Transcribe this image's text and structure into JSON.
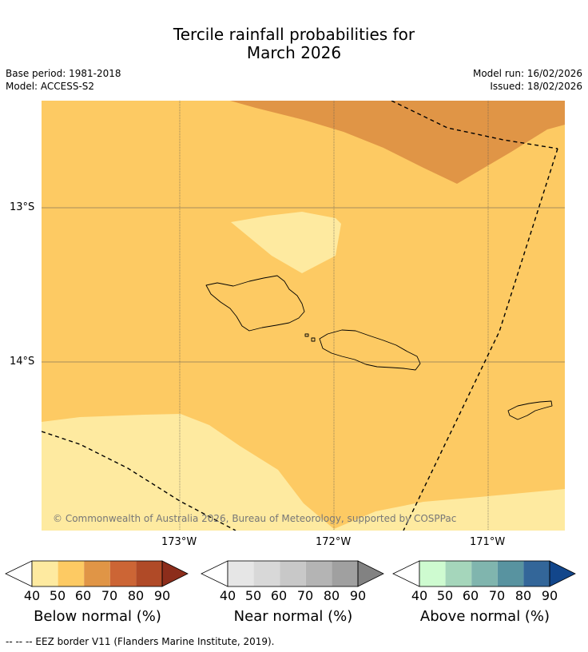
{
  "title": {
    "line1": "Tercile rainfall probabilities for",
    "line2": "March 2026"
  },
  "meta": {
    "base_period": "Base period: 1981-2018",
    "model": "Model: ACCESS-S2",
    "model_run": "Model run: 16/02/2026",
    "issued": "Issued: 18/02/2026"
  },
  "map": {
    "lat_labels": [
      "13°S",
      "14°S"
    ],
    "lon_labels": [
      "173°W",
      "172°W",
      "171°W"
    ],
    "copyright": "© Commonwealth of Australia 2026, Bureau of Meteorology, supported by COSPPac",
    "colors": {
      "base": "#fdca63",
      "p40_50": "#feeaa0",
      "p60_70": "#e09546",
      "grid": "#555555"
    }
  },
  "legends": [
    {
      "label": "Below normal (%)",
      "ticks": [
        "40",
        "50",
        "60",
        "70",
        "80",
        "90"
      ],
      "colors": [
        "#feeaa0",
        "#fdca63",
        "#e09546",
        "#cc6535",
        "#b04a27",
        "#8c2d1b"
      ]
    },
    {
      "label": "Near normal (%)",
      "ticks": [
        "40",
        "50",
        "60",
        "70",
        "80",
        "90"
      ],
      "colors": [
        "#e6e6e6",
        "#d8d8d8",
        "#c8c8c8",
        "#b4b4b4",
        "#a0a0a0",
        "#828282"
      ]
    },
    {
      "label": "Above normal (%)",
      "ticks": [
        "40",
        "50",
        "60",
        "70",
        "80",
        "90"
      ],
      "colors": [
        "#cefbd0",
        "#a5d6bb",
        "#80b5ae",
        "#5893a0",
        "#336699",
        "#12468b"
      ]
    }
  ],
  "footnote": "--  --  -- EEZ border V11 (Flanders Marine Institute, 2019)."
}
